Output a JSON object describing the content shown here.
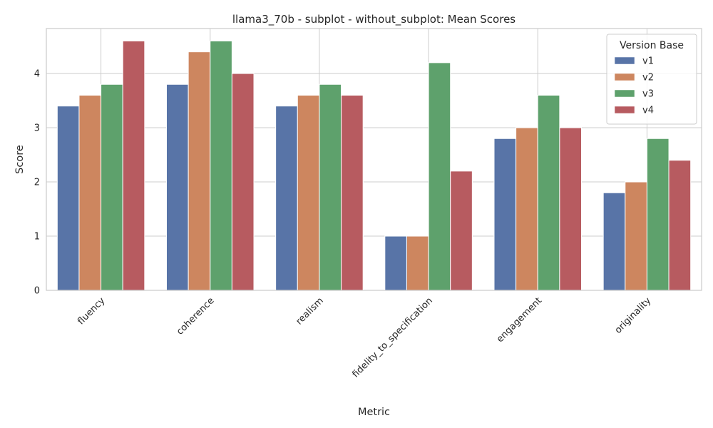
{
  "chart_data": {
    "type": "bar",
    "title": "llama3_70b - subplot - without_subplot: Mean Scores",
    "xlabel": "Metric",
    "ylabel": "Score",
    "ylim": [
      0,
      4.83
    ],
    "yticks": [
      0,
      1,
      2,
      3,
      4
    ],
    "grid": true,
    "legend": {
      "title": "Version Base",
      "placement": "top-right"
    },
    "categories": [
      "fluency",
      "coherence",
      "realism",
      "fidelity_to_specification",
      "engagement",
      "originality"
    ],
    "series": [
      {
        "name": "v1",
        "color": "#5874a7",
        "values": [
          3.4,
          3.8,
          3.4,
          1.0,
          2.8,
          1.8
        ]
      },
      {
        "name": "v2",
        "color": "#cd865f",
        "values": [
          3.6,
          4.4,
          3.6,
          1.0,
          3.0,
          2.0
        ]
      },
      {
        "name": "v3",
        "color": "#5ea16c",
        "values": [
          3.8,
          4.6,
          3.8,
          4.2,
          3.6,
          2.8
        ]
      },
      {
        "name": "v4",
        "color": "#b75b60",
        "values": [
          4.6,
          4.0,
          3.6,
          2.2,
          3.0,
          2.4
        ]
      }
    ]
  }
}
